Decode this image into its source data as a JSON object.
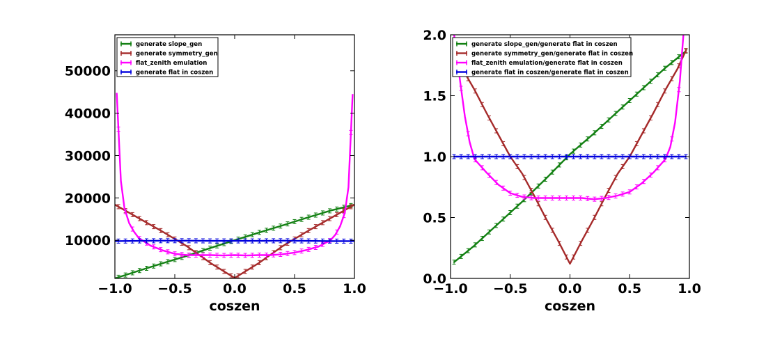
{
  "colors": {
    "green": "#138013",
    "brown": "#a52a2a",
    "magenta": "#ff00ff",
    "blue": "#0000dd"
  },
  "chart_data": [
    {
      "type": "line",
      "title": "",
      "xlabel": "coszen",
      "ylabel": "",
      "xlim": [
        -1.0,
        1.0
      ],
      "ylim": [
        1000,
        58500
      ],
      "xticks": [
        "−1.0",
        "−0.5",
        "0.0",
        "0.5",
        "1.0"
      ],
      "xtick_values": [
        -1.0,
        -0.5,
        0.0,
        0.5,
        1.0
      ],
      "yticks": [
        "10000",
        "20000",
        "30000",
        "40000",
        "50000"
      ],
      "ytick_values": [
        10000,
        20000,
        30000,
        40000,
        50000
      ],
      "grid": false,
      "legend_position": "top-left",
      "series": [
        {
          "name": "generate slope_gen",
          "color": "green",
          "x": [
            -1.0,
            -0.8,
            -0.6,
            -0.4,
            -0.2,
            0.0,
            0.2,
            0.4,
            0.6,
            0.8,
            1.0
          ],
          "y": [
            1000,
            2800,
            4600,
            6300,
            8200,
            10000,
            11800,
            13500,
            15300,
            17000,
            18400
          ]
        },
        {
          "name": "generate symmetry_gen",
          "color": "brown",
          "x": [
            -1.0,
            -0.8,
            -0.6,
            -0.4,
            -0.2,
            0.0,
            0.2,
            0.4,
            0.6,
            0.8,
            1.0
          ],
          "y": [
            18400,
            15200,
            12000,
            8600,
            4600,
            1100,
            4600,
            8600,
            12000,
            15200,
            18400
          ]
        },
        {
          "name": "flat_zenith emulation",
          "color": "magenta",
          "x": [
            -0.985,
            -0.95,
            -0.92,
            -0.88,
            -0.84,
            -0.8,
            -0.7,
            -0.6,
            -0.5,
            -0.4,
            -0.3,
            -0.2,
            -0.1,
            0.0,
            0.1,
            0.2,
            0.3,
            0.4,
            0.5,
            0.6,
            0.7,
            0.8,
            0.84,
            0.88,
            0.92,
            0.95,
            0.985
          ],
          "y": [
            44800,
            24000,
            17500,
            14000,
            12000,
            10500,
            8700,
            7600,
            6800,
            6500,
            6500,
            6500,
            6400,
            6500,
            6400,
            6500,
            6500,
            6700,
            7100,
            7700,
            8500,
            10000,
            11300,
            13300,
            16500,
            22500,
            44500
          ]
        },
        {
          "name": "generate flat in coszen",
          "color": "blue",
          "x": [
            -1.0,
            -0.8,
            -0.6,
            -0.4,
            -0.2,
            0.0,
            0.2,
            0.4,
            0.6,
            0.8,
            1.0
          ],
          "y": [
            9800,
            9850,
            9900,
            9900,
            9850,
            9850,
            9850,
            9900,
            9850,
            9800,
            9800
          ]
        }
      ]
    },
    {
      "type": "line",
      "title": "",
      "xlabel": "coszen",
      "ylabel": "",
      "xlim": [
        -1.0,
        1.0
      ],
      "ylim": [
        0.0,
        2.0
      ],
      "xticks": [
        "−1.0",
        "−0.5",
        "0.0",
        "0.5",
        "1.0"
      ],
      "xtick_values": [
        -1.0,
        -0.5,
        0.0,
        0.5,
        1.0
      ],
      "yticks": [
        "0.0",
        "0.5",
        "1.0",
        "1.5",
        "2.0"
      ],
      "ytick_values": [
        0.0,
        0.5,
        1.0,
        1.5,
        2.0
      ],
      "grid": false,
      "legend_position": "top-left",
      "series": [
        {
          "name": "generate slope_gen/generate flat in coszen",
          "color": "green",
          "x": [
            -0.975,
            -0.8,
            -0.6,
            -0.4,
            -0.2,
            0.0,
            0.2,
            0.4,
            0.6,
            0.8,
            0.975
          ],
          "y": [
            0.13,
            0.27,
            0.45,
            0.63,
            0.82,
            1.02,
            1.19,
            1.37,
            1.55,
            1.73,
            1.87
          ]
        },
        {
          "name": "generate symmetry_gen/generate flat in coszen",
          "color": "brown",
          "x": [
            -0.975,
            -0.9,
            -0.8,
            -0.7,
            -0.6,
            -0.5,
            -0.4,
            -0.3,
            -0.2,
            -0.1,
            0.0,
            0.1,
            0.2,
            0.3,
            0.4,
            0.5,
            0.6,
            0.7,
            0.8,
            0.9,
            0.975
          ],
          "y": [
            1.88,
            1.72,
            1.55,
            1.36,
            1.18,
            1.0,
            0.86,
            0.68,
            0.49,
            0.31,
            0.12,
            0.31,
            0.49,
            0.68,
            0.86,
            1.0,
            1.18,
            1.36,
            1.55,
            1.72,
            1.88
          ]
        },
        {
          "name": "flat_zenith emulation/generate flat in coszen",
          "color": "magenta",
          "x": [
            -0.97,
            -0.92,
            -0.88,
            -0.84,
            -0.8,
            -0.7,
            -0.6,
            -0.5,
            -0.4,
            -0.3,
            -0.2,
            -0.1,
            0.0,
            0.1,
            0.2,
            0.3,
            0.4,
            0.5,
            0.6,
            0.7,
            0.8,
            0.84,
            0.88,
            0.92,
            0.95
          ],
          "y": [
            2.0,
            1.62,
            1.33,
            1.12,
            0.98,
            0.87,
            0.77,
            0.7,
            0.67,
            0.66,
            0.66,
            0.66,
            0.66,
            0.66,
            0.65,
            0.66,
            0.68,
            0.71,
            0.78,
            0.87,
            0.98,
            1.08,
            1.28,
            1.62,
            2.0
          ]
        },
        {
          "name": "generate flat in coszen/generate flat in coszen",
          "color": "blue",
          "x": [
            -0.975,
            -0.5,
            0.0,
            0.5,
            0.975
          ],
          "y": [
            1.0,
            1.0,
            1.0,
            1.0,
            1.0
          ]
        }
      ]
    }
  ]
}
